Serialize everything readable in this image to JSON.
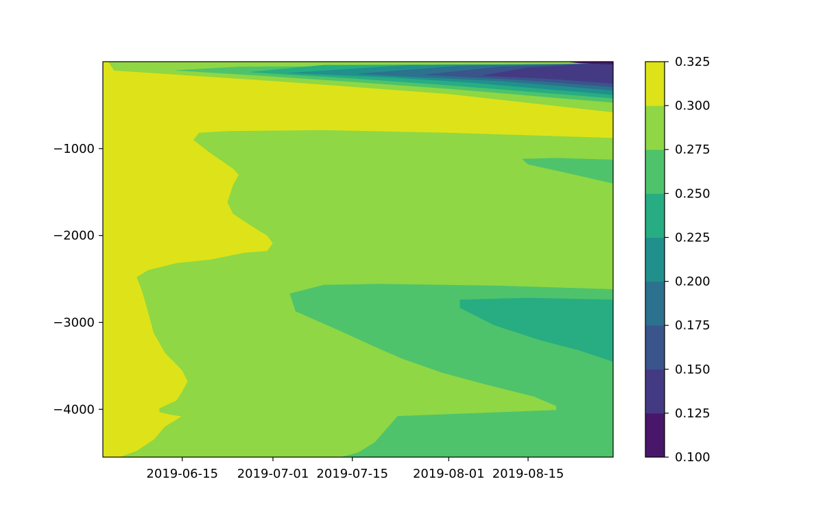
{
  "chart_data": {
    "type": "contourf",
    "title": "",
    "xlabel": "",
    "ylabel": "",
    "x_axis": {
      "kind": "date",
      "range": [
        "2019-06-01",
        "2019-08-30"
      ],
      "ticks": [
        "2019-06-15",
        "2019-07-01",
        "2019-07-15",
        "2019-08-01",
        "2019-08-15"
      ]
    },
    "y_axis": {
      "range": [
        -4550,
        0
      ],
      "ticks": [
        -1000,
        -2000,
        -3000,
        -4000
      ],
      "tick_labels": [
        "−1000",
        "−2000",
        "−3000",
        "−4000"
      ]
    },
    "levels": [
      0.1,
      0.125,
      0.15,
      0.175,
      0.2,
      0.225,
      0.25,
      0.275,
      0.3,
      0.325
    ],
    "colorbar": {
      "placement": "right",
      "tick_labels": [
        "0.100",
        "0.125",
        "0.150",
        "0.175",
        "0.200",
        "0.225",
        "0.250",
        "0.275",
        "0.300",
        "0.325"
      ],
      "band_colors": [
        "#481769",
        "#443a83",
        "#3a548c",
        "#2c718e",
        "#21908d",
        "#27ad81",
        "#4ec36b",
        "#8fd744",
        "#dde318"
      ]
    },
    "regions": [
      {
        "band": 8,
        "points": [
          [
            "2019-06-01",
            -4550
          ],
          [
            "2019-06-01",
            0
          ],
          [
            "2019-08-30",
            0
          ],
          [
            "2019-08-30",
            -4550
          ]
        ]
      },
      {
        "band": 7,
        "points": [
          [
            "2019-06-04",
            -4550
          ],
          [
            "2019-06-07",
            -4480
          ],
          [
            "2019-06-10",
            -4350
          ],
          [
            "2019-06-12",
            -4200
          ],
          [
            "2019-06-15",
            -4080
          ],
          [
            "2019-06-13",
            -4060
          ],
          [
            "2019-06-11",
            -4030
          ],
          [
            "2019-06-11",
            -3990
          ],
          [
            "2019-06-14",
            -3900
          ],
          [
            "2019-06-15",
            -3800
          ],
          [
            "2019-06-16",
            -3680
          ],
          [
            "2019-06-15",
            -3550
          ],
          [
            "2019-06-12",
            -3350
          ],
          [
            "2019-06-10",
            -3120
          ],
          [
            "2019-06-09",
            -2880
          ],
          [
            "2019-06-08",
            -2650
          ],
          [
            "2019-06-07",
            -2480
          ],
          [
            "2019-06-09",
            -2400
          ],
          [
            "2019-06-14",
            -2320
          ],
          [
            "2019-06-20",
            -2280
          ],
          [
            "2019-06-26",
            -2200
          ],
          [
            "2019-06-30",
            -2180
          ],
          [
            "2019-07-01",
            -2090
          ],
          [
            "2019-06-30",
            -2000
          ],
          [
            "2019-06-27",
            -1880
          ],
          [
            "2019-06-24",
            -1750
          ],
          [
            "2019-06-23",
            -1620
          ],
          [
            "2019-06-24",
            -1420
          ],
          [
            "2019-06-25",
            -1300
          ],
          [
            "2019-06-24",
            -1230
          ],
          [
            "2019-06-20",
            -1050
          ],
          [
            "2019-06-17",
            -900
          ],
          [
            "2019-06-18",
            -820
          ],
          [
            "2019-06-23",
            -800
          ],
          [
            "2019-07-10",
            -790
          ],
          [
            "2019-08-01",
            -820
          ],
          [
            "2019-08-30",
            -880
          ],
          [
            "2019-08-30",
            -4550
          ]
        ]
      },
      {
        "band": 6,
        "points": [
          [
            "2019-07-13",
            -4550
          ],
          [
            "2019-07-16",
            -4500
          ],
          [
            "2019-07-19",
            -4380
          ],
          [
            "2019-07-23",
            -4080
          ],
          [
            "2019-07-31",
            -4060
          ],
          [
            "2019-08-20",
            -4010
          ],
          [
            "2019-08-20",
            -3960
          ],
          [
            "2019-08-16",
            -3850
          ],
          [
            "2019-08-08",
            -3720
          ],
          [
            "2019-07-31",
            -3580
          ],
          [
            "2019-07-24",
            -3420
          ],
          [
            "2019-07-19",
            -3280
          ],
          [
            "2019-07-13",
            -3100
          ],
          [
            "2019-07-05",
            -2870
          ],
          [
            "2019-07-04",
            -2670
          ],
          [
            "2019-07-10",
            -2570
          ],
          [
            "2019-07-20",
            -2560
          ],
          [
            "2019-08-10",
            -2580
          ],
          [
            "2019-08-30",
            -2620
          ],
          [
            "2019-08-30",
            -4550
          ]
        ]
      },
      {
        "band": 5,
        "points": [
          [
            "2019-08-03",
            -2740
          ],
          [
            "2019-08-03",
            -2830
          ],
          [
            "2019-08-09",
            -3030
          ],
          [
            "2019-08-17",
            -3200
          ],
          [
            "2019-08-24",
            -3320
          ],
          [
            "2019-08-30",
            -3450
          ],
          [
            "2019-08-30",
            -2740
          ],
          [
            "2019-08-15",
            -2720
          ]
        ]
      },
      {
        "band": 6,
        "points": [
          [
            "2019-08-14",
            -1120
          ],
          [
            "2019-08-15",
            -1180
          ],
          [
            "2019-08-24",
            -1310
          ],
          [
            "2019-08-30",
            -1400
          ],
          [
            "2019-08-30",
            -1130
          ],
          [
            "2019-08-20",
            -1110
          ]
        ]
      },
      {
        "band": 7,
        "points": [
          [
            "2019-06-02",
            0
          ],
          [
            "2019-06-03",
            -100
          ],
          [
            "2019-06-10",
            -130
          ],
          [
            "2019-07-01",
            -220
          ],
          [
            "2019-08-01",
            -370
          ],
          [
            "2019-08-30",
            -580
          ],
          [
            "2019-08-30",
            0
          ]
        ]
      },
      {
        "band": 6,
        "points": [
          [
            "2019-06-14",
            -100
          ],
          [
            "2019-06-29",
            -160
          ],
          [
            "2019-07-15",
            -230
          ],
          [
            "2019-08-01",
            -310
          ],
          [
            "2019-08-30",
            -470
          ],
          [
            "2019-08-30",
            -40
          ],
          [
            "2019-06-25",
            -60
          ]
        ]
      },
      {
        "band": 5,
        "points": [
          [
            "2019-06-27",
            -120
          ],
          [
            "2019-07-15",
            -190
          ],
          [
            "2019-08-01",
            -270
          ],
          [
            "2019-08-30",
            -420
          ],
          [
            "2019-08-30",
            -30
          ],
          [
            "2019-07-10",
            -40
          ]
        ]
      },
      {
        "band": 4,
        "points": [
          [
            "2019-07-04",
            -130
          ],
          [
            "2019-07-22",
            -180
          ],
          [
            "2019-08-05",
            -240
          ],
          [
            "2019-08-30",
            -380
          ],
          [
            "2019-08-30",
            -25
          ],
          [
            "2019-07-25",
            -40
          ]
        ]
      },
      {
        "band": 3,
        "points": [
          [
            "2019-07-16",
            -140
          ],
          [
            "2019-07-28",
            -180
          ],
          [
            "2019-08-10",
            -220
          ],
          [
            "2019-08-30",
            -330
          ],
          [
            "2019-08-30",
            -20
          ],
          [
            "2019-08-03",
            -50
          ]
        ]
      },
      {
        "band": 2,
        "points": [
          [
            "2019-07-28",
            -150
          ],
          [
            "2019-08-14",
            -210
          ],
          [
            "2019-08-30",
            -290
          ],
          [
            "2019-08-30",
            -15
          ],
          [
            "2019-08-10",
            -60
          ]
        ]
      },
      {
        "band": 1,
        "points": [
          [
            "2019-08-07",
            -160
          ],
          [
            "2019-08-20",
            -200
          ],
          [
            "2019-08-30",
            -250
          ],
          [
            "2019-08-30",
            -10
          ],
          [
            "2019-08-15",
            -70
          ]
        ]
      },
      {
        "band": 0,
        "points": [
          [
            "2019-08-24",
            -15
          ],
          [
            "2019-08-30",
            -30
          ],
          [
            "2019-08-30",
            0
          ],
          [
            "2019-08-22",
            0
          ]
        ]
      }
    ]
  }
}
